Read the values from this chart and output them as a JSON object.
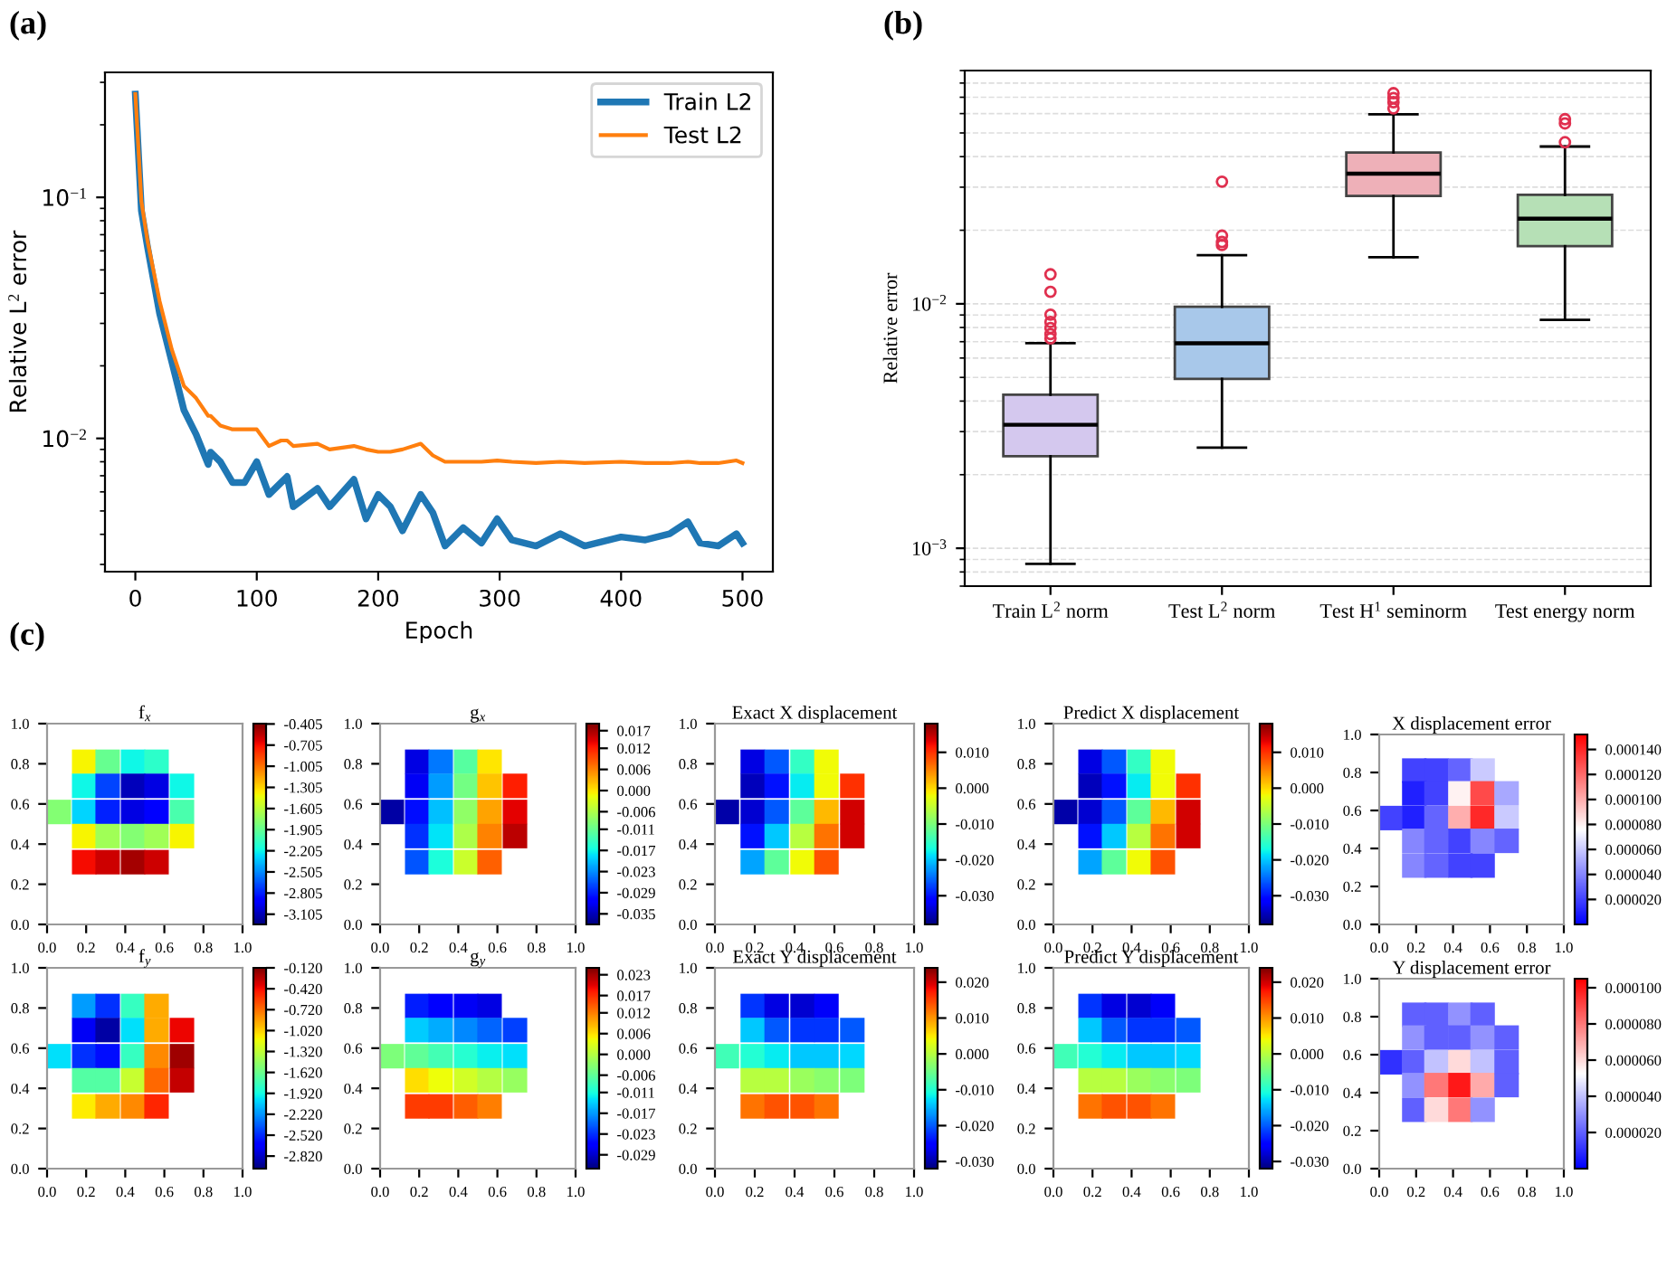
{
  "chart_data": [
    {
      "type": "line",
      "title": "(a)",
      "xlabel": "Epoch",
      "ylabel": "Relative L$^{2}$ error",
      "log": "y",
      "legend": "top right",
      "x": [
        0,
        5,
        10,
        20,
        30,
        40,
        50,
        60,
        62,
        70,
        80,
        90,
        100,
        110,
        120,
        125,
        130,
        150,
        160,
        180,
        190,
        200,
        210,
        220,
        235,
        245,
        255,
        270,
        285,
        298,
        310,
        330,
        350,
        370,
        400,
        420,
        440,
        455,
        465,
        480,
        495,
        500
      ],
      "xlim": [
        -25,
        525
      ],
      "ylim": [
        0.0028,
        0.33
      ],
      "xticks": [
        0,
        100,
        200,
        300,
        400,
        500
      ],
      "yticks": [
        {
          "value": 0.1,
          "label": "10$^{−1}$"
        },
        {
          "value": 0.01,
          "label": "10$^{−2}$"
        }
      ],
      "series": [
        {
          "name": "Train L2",
          "color": "#1f77b4",
          "values": [
            0.268,
            0.0881,
            0.0623,
            0.033,
            0.0208,
            0.0131,
            0.0104,
            0.0078,
            0.00876,
            0.008,
            0.00656,
            0.00656,
            0.008,
            0.00585,
            0.00656,
            0.00695,
            0.00521,
            0.0062,
            0.00521,
            0.00676,
            0.00464,
            0.00585,
            0.00521,
            0.00414,
            0.00585,
            0.00492,
            0.00358,
            0.00426,
            0.00368,
            0.00464,
            0.00379,
            0.00358,
            0.00402,
            0.00358,
            0.0039,
            0.00379,
            0.00402,
            0.00451,
            0.00368,
            0.00358,
            0.00402,
            0.00368
          ]
        },
        {
          "name": "Test L2",
          "color": "#ff7f0e",
          "values": [
            0.268,
            0.0961,
            0.066,
            0.0371,
            0.0234,
            0.0165,
            0.0147,
            0.0124,
            0.0124,
            0.0113,
            0.0109,
            0.0109,
            0.0109,
            0.0093,
            0.0098,
            0.0098,
            0.0093,
            0.0095,
            0.009,
            0.0093,
            0.009,
            0.0088,
            0.0088,
            0.009,
            0.0095,
            0.0085,
            0.008,
            0.008,
            0.008,
            0.0081,
            0.008,
            0.0079,
            0.008,
            0.0079,
            0.008,
            0.0079,
            0.0079,
            0.008,
            0.0079,
            0.0079,
            0.0081,
            0.0079
          ]
        }
      ]
    },
    {
      "type": "box",
      "title": "(b)",
      "ylabel": "Relative error",
      "log": "y",
      "grid": "y",
      "categories": [
        "Train L$^{2}$ norm",
        "Test L$^{2}$ norm",
        "Test H$^{1}$ seminorm",
        "Test energy norm"
      ],
      "colors": [
        "#d4c8ee",
        "#a8c8ea",
        "#eeb0b8",
        "#b6e0b6"
      ],
      "ylim": [
        0.0007,
        0.09
      ],
      "yticks": [
        {
          "value": 0.01,
          "label": "10$^{−2}$"
        },
        {
          "value": 0.001,
          "label": "10$^{−3}$"
        }
      ],
      "boxes": [
        {
          "low": 0.000863,
          "q1": 0.00238,
          "median": 0.0032,
          "q3": 0.00425,
          "high": 0.0069,
          "outliers": [
            0.0132,
            0.0112,
            0.00903,
            0.00843,
            0.00796,
            0.00752,
            0.00722
          ]
        },
        {
          "low": 0.00258,
          "q1": 0.00493,
          "median": 0.0069,
          "q3": 0.00972,
          "high": 0.0158,
          "outliers": [
            0.0316,
            0.019,
            0.0179,
            0.0174
          ]
        },
        {
          "low": 0.0155,
          "q1": 0.0276,
          "median": 0.0341,
          "q3": 0.0416,
          "high": 0.0596,
          "outliers": [
            0.0727,
            0.0695,
            0.0668,
            0.063
          ]
        },
        {
          "low": 0.0086,
          "q1": 0.0172,
          "median": 0.0223,
          "q3": 0.0279,
          "high": 0.044,
          "outliers": [
            0.0569,
            0.0547,
            0.0458
          ]
        }
      ]
    },
    {
      "type": "scatter",
      "title": "f$_{x}$",
      "annotations": [
        "(c)"
      ],
      "marker": "square",
      "xlim": [
        0,
        1
      ],
      "ylim": [
        0,
        1
      ],
      "xticks": [
        {
          "value": 0,
          "label": "0.0"
        },
        {
          "value": 0.2,
          "label": "0.2"
        },
        {
          "value": 0.4,
          "label": "0.4"
        },
        {
          "value": 0.6,
          "label": "0.6"
        },
        {
          "value": 0.8,
          "label": "0.8"
        },
        {
          "value": 1,
          "label": "1.0"
        }
      ],
      "yticks": [
        {
          "value": 0,
          "label": "0.0"
        },
        {
          "value": 0.2,
          "label": "0.2"
        },
        {
          "value": 0.4,
          "label": "0.4"
        },
        {
          "value": 0.6,
          "label": "0.6"
        },
        {
          "value": 0.8,
          "label": "0.8"
        },
        {
          "value": 1,
          "label": "1.0"
        }
      ],
      "x": [
        0.19,
        0.31,
        0.44,
        0.56,
        0.19,
        0.31,
        0.44,
        0.56,
        0.69,
        0.06,
        0.19,
        0.31,
        0.44,
        0.56,
        0.69,
        0.19,
        0.31,
        0.44,
        0.56,
        0.69,
        0.19,
        0.31,
        0.44,
        0.56
      ],
      "values": [
        0.81,
        0.81,
        0.81,
        0.81,
        0.69,
        0.69,
        0.69,
        0.69,
        0.69,
        0.56,
        0.56,
        0.56,
        0.56,
        0.56,
        0.56,
        0.44,
        0.44,
        0.44,
        0.44,
        0.44,
        0.31,
        0.31,
        0.31,
        0.31
      ],
      "cvalues": [
        -1.4,
        -1.9,
        -2.2,
        -2.1,
        -2.2,
        -2.7,
        -3.1,
        -3.0,
        -2.2,
        -1.8,
        -2.3,
        -2.8,
        -3.0,
        -2.9,
        -2.0,
        -1.4,
        -1.7,
        -1.8,
        -1.7,
        -1.4,
        -0.7,
        -0.6,
        -0.5,
        -0.6
      ],
      "clim": [
        -3.25,
        -0.4
      ],
      "cticks": [
        {
          "value": -0.405,
          "label": "-0.405"
        },
        {
          "value": -0.705,
          "label": "-0.705"
        },
        {
          "value": -1.005,
          "label": "-1.005"
        },
        {
          "value": -1.305,
          "label": "-1.305"
        },
        {
          "value": -1.605,
          "label": "-1.605"
        },
        {
          "value": -1.905,
          "label": "-1.905"
        },
        {
          "value": -2.205,
          "label": "-2.205"
        },
        {
          "value": -2.505,
          "label": "-2.505"
        },
        {
          "value": -2.805,
          "label": "-2.805"
        },
        {
          "value": -3.105,
          "label": "-3.105"
        }
      ]
    },
    {
      "type": "scatter",
      "title": "g$_{x}$",
      "marker": "square",
      "xlim": [
        0,
        1
      ],
      "ylim": [
        0,
        1
      ],
      "xticks": [
        {
          "value": 0,
          "label": "0.0"
        },
        {
          "value": 0.2,
          "label": "0.2"
        },
        {
          "value": 0.4,
          "label": "0.4"
        },
        {
          "value": 0.6,
          "label": "0.6"
        },
        {
          "value": 0.8,
          "label": "0.8"
        },
        {
          "value": 1,
          "label": "1.0"
        }
      ],
      "yticks": [
        {
          "value": 0,
          "label": "0.0"
        },
        {
          "value": 0.2,
          "label": "0.2"
        },
        {
          "value": 0.4,
          "label": "0.4"
        },
        {
          "value": 0.6,
          "label": "0.6"
        },
        {
          "value": 0.8,
          "label": "0.8"
        },
        {
          "value": 1,
          "label": "1.0"
        }
      ],
      "x": [
        0.19,
        0.31,
        0.44,
        0.56,
        0.19,
        0.31,
        0.44,
        0.56,
        0.69,
        0.06,
        0.19,
        0.31,
        0.44,
        0.56,
        0.69,
        0.19,
        0.31,
        0.44,
        0.56,
        0.69,
        0.19,
        0.31,
        0.44,
        0.56
      ],
      "values": [
        0.81,
        0.81,
        0.81,
        0.81,
        0.69,
        0.69,
        0.69,
        0.69,
        0.69,
        0.56,
        0.56,
        0.56,
        0.56,
        0.56,
        0.56,
        0.44,
        0.44,
        0.44,
        0.44,
        0.44,
        0.31,
        0.31,
        0.31,
        0.31
      ],
      "cvalues": [
        -0.033,
        -0.024,
        -0.012,
        0.0,
        -0.032,
        -0.022,
        -0.01,
        0.002,
        0.012,
        -0.036,
        -0.03,
        -0.02,
        -0.008,
        0.004,
        0.014,
        -0.028,
        -0.018,
        -0.006,
        0.006,
        0.016,
        -0.026,
        -0.016,
        -0.004,
        0.008
      ],
      "clim": [
        -0.038,
        0.019
      ],
      "cticks": [
        {
          "value": 0.017,
          "label": "0.017"
        },
        {
          "value": 0.012,
          "label": "0.012"
        },
        {
          "value": 0.006,
          "label": "0.006"
        },
        {
          "value": 0.0,
          "label": "0.000"
        },
        {
          "value": -0.006,
          "label": "-0.006"
        },
        {
          "value": -0.011,
          "label": "-0.011"
        },
        {
          "value": -0.017,
          "label": "-0.017"
        },
        {
          "value": -0.023,
          "label": "-0.023"
        },
        {
          "value": -0.029,
          "label": "-0.029"
        },
        {
          "value": -0.035,
          "label": "-0.035"
        }
      ]
    },
    {
      "type": "scatter",
      "title": "Exact X displacement",
      "marker": "square",
      "xlim": [
        0,
        1
      ],
      "ylim": [
        0,
        1
      ],
      "xticks": [
        {
          "value": 0,
          "label": "0.0"
        },
        {
          "value": 0.2,
          "label": "0.2"
        },
        {
          "value": 0.4,
          "label": "0.4"
        },
        {
          "value": 0.6,
          "label": "0.6"
        },
        {
          "value": 0.8,
          "label": "0.8"
        },
        {
          "value": 1,
          "label": "1.0"
        }
      ],
      "yticks": [
        {
          "value": 0,
          "label": "0.0"
        },
        {
          "value": 0.2,
          "label": "0.2"
        },
        {
          "value": 0.4,
          "label": "0.4"
        },
        {
          "value": 0.6,
          "label": "0.6"
        },
        {
          "value": 0.8,
          "label": "0.8"
        },
        {
          "value": 1,
          "label": "1.0"
        }
      ],
      "x": [
        0.19,
        0.31,
        0.44,
        0.56,
        0.19,
        0.31,
        0.44,
        0.56,
        0.69,
        0.06,
        0.19,
        0.31,
        0.44,
        0.56,
        0.69,
        0.19,
        0.31,
        0.44,
        0.56,
        0.69,
        0.19,
        0.31,
        0.44,
        0.56
      ],
      "values": [
        0.81,
        0.81,
        0.81,
        0.81,
        0.69,
        0.69,
        0.69,
        0.69,
        0.69,
        0.56,
        0.56,
        0.56,
        0.56,
        0.56,
        0.56,
        0.44,
        0.44,
        0.44,
        0.44,
        0.44,
        0.31,
        0.31,
        0.31,
        0.31
      ],
      "cvalues": [
        -0.033,
        -0.026,
        -0.015,
        -0.002,
        -0.035,
        -0.03,
        -0.018,
        -0.002,
        0.01,
        -0.036,
        -0.034,
        -0.026,
        -0.012,
        0.002,
        0.014,
        -0.03,
        -0.02,
        -0.006,
        0.006,
        0.014,
        -0.022,
        -0.012,
        -0.002,
        0.008
      ],
      "clim": [
        -0.038,
        0.018
      ],
      "cticks": [
        {
          "value": 0.01,
          "label": "0.010"
        },
        {
          "value": 0.0,
          "label": "0.000"
        },
        {
          "value": -0.01,
          "label": "-0.010"
        },
        {
          "value": -0.02,
          "label": "-0.020"
        },
        {
          "value": -0.03,
          "label": "-0.030"
        }
      ]
    },
    {
      "type": "scatter",
      "title": "Predict X displacement",
      "marker": "square",
      "xlim": [
        0,
        1
      ],
      "ylim": [
        0,
        1
      ],
      "xticks": [
        {
          "value": 0,
          "label": "0.0"
        },
        {
          "value": 0.2,
          "label": "0.2"
        },
        {
          "value": 0.4,
          "label": "0.4"
        },
        {
          "value": 0.6,
          "label": "0.6"
        },
        {
          "value": 0.8,
          "label": "0.8"
        },
        {
          "value": 1,
          "label": "1.0"
        }
      ],
      "yticks": [
        {
          "value": 0,
          "label": "0.0"
        },
        {
          "value": 0.2,
          "label": "0.2"
        },
        {
          "value": 0.4,
          "label": "0.4"
        },
        {
          "value": 0.6,
          "label": "0.6"
        },
        {
          "value": 0.8,
          "label": "0.8"
        },
        {
          "value": 1,
          "label": "1.0"
        }
      ],
      "x": [
        0.19,
        0.31,
        0.44,
        0.56,
        0.19,
        0.31,
        0.44,
        0.56,
        0.69,
        0.06,
        0.19,
        0.31,
        0.44,
        0.56,
        0.69,
        0.19,
        0.31,
        0.44,
        0.56,
        0.69,
        0.19,
        0.31,
        0.44,
        0.56
      ],
      "values": [
        0.81,
        0.81,
        0.81,
        0.81,
        0.69,
        0.69,
        0.69,
        0.69,
        0.69,
        0.56,
        0.56,
        0.56,
        0.56,
        0.56,
        0.56,
        0.44,
        0.44,
        0.44,
        0.44,
        0.44,
        0.31,
        0.31,
        0.31,
        0.31
      ],
      "cvalues": [
        -0.033,
        -0.026,
        -0.015,
        -0.002,
        -0.035,
        -0.03,
        -0.018,
        -0.002,
        0.01,
        -0.036,
        -0.034,
        -0.026,
        -0.012,
        0.002,
        0.014,
        -0.03,
        -0.02,
        -0.006,
        0.006,
        0.014,
        -0.022,
        -0.012,
        -0.002,
        0.008
      ],
      "clim": [
        -0.038,
        0.018
      ],
      "cticks": [
        {
          "value": 0.01,
          "label": "0.010"
        },
        {
          "value": 0.0,
          "label": "0.000"
        },
        {
          "value": -0.01,
          "label": "-0.010"
        },
        {
          "value": -0.02,
          "label": "-0.020"
        },
        {
          "value": -0.03,
          "label": "-0.030"
        }
      ]
    },
    {
      "type": "scatter",
      "title": "X displacement error",
      "marker": "square",
      "xlim": [
        0,
        1
      ],
      "ylim": [
        0,
        1
      ],
      "xticks": [
        {
          "value": 0,
          "label": "0.0"
        },
        {
          "value": 0.2,
          "label": "0.2"
        },
        {
          "value": 0.4,
          "label": "0.4"
        },
        {
          "value": 0.6,
          "label": "0.6"
        },
        {
          "value": 0.8,
          "label": "0.8"
        },
        {
          "value": 1,
          "label": "1.0"
        }
      ],
      "yticks": [
        {
          "value": 0,
          "label": "0.0"
        },
        {
          "value": 0.2,
          "label": "0.2"
        },
        {
          "value": 0.4,
          "label": "0.4"
        },
        {
          "value": 0.6,
          "label": "0.6"
        },
        {
          "value": 0.8,
          "label": "0.8"
        },
        {
          "value": 1,
          "label": "1.0"
        }
      ],
      "x": [
        0.19,
        0.31,
        0.44,
        0.56,
        0.19,
        0.31,
        0.44,
        0.56,
        0.69,
        0.06,
        0.19,
        0.31,
        0.44,
        0.56,
        0.69,
        0.19,
        0.31,
        0.44,
        0.56,
        0.69,
        0.19,
        0.31,
        0.44,
        0.56
      ],
      "values": [
        0.81,
        0.81,
        0.81,
        0.81,
        0.69,
        0.69,
        0.69,
        0.69,
        0.69,
        0.56,
        0.56,
        0.56,
        0.56,
        0.56,
        0.56,
        0.44,
        0.44,
        0.44,
        0.44,
        0.44,
        0.31,
        0.31,
        0.31,
        0.31
      ],
      "cvalues": [
        2e-05,
        2e-05,
        3e-05,
        6e-05,
        1e-05,
        2e-05,
        8e-05,
        0.00013,
        5e-05,
        2e-05,
        1e-05,
        3e-05,
        0.0001,
        0.00014,
        6e-05,
        4e-05,
        3e-05,
        2e-05,
        4e-05,
        3e-05,
        4e-05,
        3e-05,
        2e-05,
        2e-05
      ],
      "clim": [
        0,
        0.000152
      ],
      "cticks": [
        {
          "value": 0.00014,
          "label": "0.000140"
        },
        {
          "value": 0.00012,
          "label": "0.000120"
        },
        {
          "value": 0.0001,
          "label": "0.000100"
        },
        {
          "value": 8e-05,
          "label": "0.000080"
        },
        {
          "value": 6e-05,
          "label": "0.000060"
        },
        {
          "value": 4e-05,
          "label": "0.000040"
        },
        {
          "value": 2e-05,
          "label": "0.000020"
        }
      ]
    },
    {
      "type": "scatter",
      "title": "f$_{y}$",
      "marker": "square",
      "xlim": [
        0,
        1
      ],
      "ylim": [
        0,
        1
      ],
      "xticks": [
        {
          "value": 0,
          "label": "0.0"
        },
        {
          "value": 0.2,
          "label": "0.2"
        },
        {
          "value": 0.4,
          "label": "0.4"
        },
        {
          "value": 0.6,
          "label": "0.6"
        },
        {
          "value": 0.8,
          "label": "0.8"
        },
        {
          "value": 1,
          "label": "1.0"
        }
      ],
      "yticks": [
        {
          "value": 0,
          "label": "0.0"
        },
        {
          "value": 0.2,
          "label": "0.2"
        },
        {
          "value": 0.4,
          "label": "0.4"
        },
        {
          "value": 0.6,
          "label": "0.6"
        },
        {
          "value": 0.8,
          "label": "0.8"
        },
        {
          "value": 1,
          "label": "1.0"
        }
      ],
      "x": [
        0.19,
        0.31,
        0.44,
        0.56,
        0.19,
        0.31,
        0.44,
        0.56,
        0.69,
        0.06,
        0.19,
        0.31,
        0.44,
        0.56,
        0.69,
        0.19,
        0.31,
        0.44,
        0.56,
        0.69,
        0.19,
        0.31,
        0.44,
        0.56
      ],
      "values": [
        0.81,
        0.81,
        0.81,
        0.81,
        0.69,
        0.69,
        0.69,
        0.69,
        0.69,
        0.56,
        0.56,
        0.56,
        0.56,
        0.56,
        0.56,
        0.44,
        0.44,
        0.44,
        0.44,
        0.44,
        0.31,
        0.31,
        0.31,
        0.31
      ],
      "cvalues": [
        -2.2,
        -2.5,
        -1.8,
        -0.9,
        -2.7,
        -2.9,
        -2.0,
        -0.9,
        -0.4,
        -2.0,
        -2.5,
        -2.6,
        -1.8,
        -0.8,
        -0.2,
        -1.7,
        -1.7,
        -1.3,
        -0.7,
        -0.3,
        -1.1,
        -0.9,
        -0.8,
        -0.5
      ],
      "clim": [
        -3.0,
        -0.12
      ],
      "cticks": [
        {
          "value": -0.12,
          "label": "-0.120"
        },
        {
          "value": -0.42,
          "label": "-0.420"
        },
        {
          "value": -0.72,
          "label": "-0.720"
        },
        {
          "value": -1.02,
          "label": "-1.020"
        },
        {
          "value": -1.32,
          "label": "-1.320"
        },
        {
          "value": -1.62,
          "label": "-1.620"
        },
        {
          "value": -1.92,
          "label": "-1.920"
        },
        {
          "value": -2.22,
          "label": "-2.220"
        },
        {
          "value": -2.52,
          "label": "-2.520"
        },
        {
          "value": -2.82,
          "label": "-2.820"
        }
      ]
    },
    {
      "type": "scatter",
      "title": "g$_{y}$",
      "marker": "square",
      "xlim": [
        0,
        1
      ],
      "ylim": [
        0,
        1
      ],
      "xticks": [
        {
          "value": 0,
          "label": "0.0"
        },
        {
          "value": 0.2,
          "label": "0.2"
        },
        {
          "value": 0.4,
          "label": "0.4"
        },
        {
          "value": 0.6,
          "label": "0.6"
        },
        {
          "value": 0.8,
          "label": "0.8"
        },
        {
          "value": 1,
          "label": "1.0"
        }
      ],
      "yticks": [
        {
          "value": 0,
          "label": "0.0"
        },
        {
          "value": 0.2,
          "label": "0.2"
        },
        {
          "value": 0.4,
          "label": "0.4"
        },
        {
          "value": 0.6,
          "label": "0.6"
        },
        {
          "value": 0.8,
          "label": "0.8"
        },
        {
          "value": 1,
          "label": "1.0"
        }
      ],
      "x": [
        0.19,
        0.31,
        0.44,
        0.56,
        0.19,
        0.31,
        0.44,
        0.56,
        0.69,
        0.06,
        0.19,
        0.31,
        0.44,
        0.56,
        0.69,
        0.19,
        0.31,
        0.44,
        0.56,
        0.69,
        0.19,
        0.31,
        0.44,
        0.56
      ],
      "values": [
        0.81,
        0.81,
        0.81,
        0.81,
        0.69,
        0.69,
        0.69,
        0.69,
        0.69,
        0.56,
        0.56,
        0.56,
        0.56,
        0.56,
        0.56,
        0.44,
        0.44,
        0.44,
        0.44,
        0.44,
        0.31,
        0.31,
        0.31,
        0.31
      ],
      "cvalues": [
        -0.024,
        -0.026,
        -0.027,
        -0.028,
        -0.014,
        -0.016,
        -0.018,
        -0.02,
        -0.022,
        -0.004,
        -0.006,
        -0.008,
        -0.01,
        -0.012,
        -0.013,
        0.006,
        0.004,
        0.002,
        0.0,
        -0.002,
        0.016,
        0.016,
        0.014,
        0.012
      ],
      "clim": [
        -0.033,
        0.025
      ],
      "cticks": [
        {
          "value": 0.023,
          "label": "0.023"
        },
        {
          "value": 0.017,
          "label": "0.017"
        },
        {
          "value": 0.012,
          "label": "0.012"
        },
        {
          "value": 0.006,
          "label": "0.006"
        },
        {
          "value": 0.0,
          "label": "0.000"
        },
        {
          "value": -0.006,
          "label": "-0.006"
        },
        {
          "value": -0.011,
          "label": "-0.011"
        },
        {
          "value": -0.017,
          "label": "-0.017"
        },
        {
          "value": -0.023,
          "label": "-0.023"
        },
        {
          "value": -0.029,
          "label": "-0.029"
        }
      ]
    },
    {
      "type": "scatter",
      "title": "Exact Y displacement",
      "marker": "square",
      "xlim": [
        0,
        1
      ],
      "ylim": [
        0,
        1
      ],
      "xticks": [
        {
          "value": 0,
          "label": "0.0"
        },
        {
          "value": 0.2,
          "label": "0.2"
        },
        {
          "value": 0.4,
          "label": "0.4"
        },
        {
          "value": 0.6,
          "label": "0.6"
        },
        {
          "value": 0.8,
          "label": "0.8"
        },
        {
          "value": 1,
          "label": "1.0"
        }
      ],
      "yticks": [
        {
          "value": 0,
          "label": "0.0"
        },
        {
          "value": 0.2,
          "label": "0.2"
        },
        {
          "value": 0.4,
          "label": "0.4"
        },
        {
          "value": 0.6,
          "label": "0.6"
        },
        {
          "value": 0.8,
          "label": "0.8"
        },
        {
          "value": 1,
          "label": "1.0"
        }
      ],
      "x": [
        0.19,
        0.31,
        0.44,
        0.56,
        0.19,
        0.31,
        0.44,
        0.56,
        0.69,
        0.06,
        0.19,
        0.31,
        0.44,
        0.56,
        0.69,
        0.19,
        0.31,
        0.44,
        0.56,
        0.69,
        0.19,
        0.31,
        0.44,
        0.56
      ],
      "values": [
        0.81,
        0.81,
        0.81,
        0.81,
        0.69,
        0.69,
        0.69,
        0.69,
        0.69,
        0.56,
        0.56,
        0.56,
        0.56,
        0.56,
        0.56,
        0.44,
        0.44,
        0.44,
        0.44,
        0.44,
        0.31,
        0.31,
        0.31,
        0.31
      ],
      "cvalues": [
        -0.022,
        -0.027,
        -0.028,
        -0.026,
        -0.014,
        -0.02,
        -0.022,
        -0.022,
        -0.02,
        -0.008,
        -0.01,
        -0.012,
        -0.014,
        -0.014,
        -0.013,
        0.0,
        0.0,
        -0.002,
        -0.003,
        -0.004,
        0.012,
        0.014,
        0.014,
        0.012
      ],
      "clim": [
        -0.032,
        0.024
      ],
      "cticks": [
        {
          "value": 0.02,
          "label": "0.020"
        },
        {
          "value": 0.01,
          "label": "0.010"
        },
        {
          "value": 0.0,
          "label": "0.000"
        },
        {
          "value": -0.01,
          "label": "-0.010"
        },
        {
          "value": -0.02,
          "label": "-0.020"
        },
        {
          "value": -0.03,
          "label": "-0.030"
        }
      ]
    },
    {
      "type": "scatter",
      "title": "Predict Y displacement",
      "marker": "square",
      "xlim": [
        0,
        1
      ],
      "ylim": [
        0,
        1
      ],
      "xticks": [
        {
          "value": 0,
          "label": "0.0"
        },
        {
          "value": 0.2,
          "label": "0.2"
        },
        {
          "value": 0.4,
          "label": "0.4"
        },
        {
          "value": 0.6,
          "label": "0.6"
        },
        {
          "value": 0.8,
          "label": "0.8"
        },
        {
          "value": 1,
          "label": "1.0"
        }
      ],
      "yticks": [
        {
          "value": 0,
          "label": "0.0"
        },
        {
          "value": 0.2,
          "label": "0.2"
        },
        {
          "value": 0.4,
          "label": "0.4"
        },
        {
          "value": 0.6,
          "label": "0.6"
        },
        {
          "value": 0.8,
          "label": "0.8"
        },
        {
          "value": 1,
          "label": "1.0"
        }
      ],
      "x": [
        0.19,
        0.31,
        0.44,
        0.56,
        0.19,
        0.31,
        0.44,
        0.56,
        0.69,
        0.06,
        0.19,
        0.31,
        0.44,
        0.56,
        0.69,
        0.19,
        0.31,
        0.44,
        0.56,
        0.69,
        0.19,
        0.31,
        0.44,
        0.56
      ],
      "values": [
        0.81,
        0.81,
        0.81,
        0.81,
        0.69,
        0.69,
        0.69,
        0.69,
        0.69,
        0.56,
        0.56,
        0.56,
        0.56,
        0.56,
        0.56,
        0.44,
        0.44,
        0.44,
        0.44,
        0.44,
        0.31,
        0.31,
        0.31,
        0.31
      ],
      "cvalues": [
        -0.022,
        -0.027,
        -0.028,
        -0.026,
        -0.014,
        -0.02,
        -0.022,
        -0.022,
        -0.02,
        -0.008,
        -0.01,
        -0.012,
        -0.014,
        -0.014,
        -0.013,
        0.0,
        0.0,
        -0.002,
        -0.003,
        -0.004,
        0.012,
        0.014,
        0.014,
        0.012
      ],
      "clim": [
        -0.032,
        0.024
      ],
      "cticks": [
        {
          "value": 0.02,
          "label": "0.020"
        },
        {
          "value": 0.01,
          "label": "0.010"
        },
        {
          "value": 0.0,
          "label": "0.000"
        },
        {
          "value": -0.01,
          "label": "-0.010"
        },
        {
          "value": -0.02,
          "label": "-0.020"
        },
        {
          "value": -0.03,
          "label": "-0.030"
        }
      ]
    },
    {
      "type": "scatter",
      "title": "Y displacement error",
      "marker": "square",
      "xlim": [
        0,
        1
      ],
      "ylim": [
        0,
        1
      ],
      "xticks": [
        {
          "value": 0,
          "label": "0.0"
        },
        {
          "value": 0.2,
          "label": "0.2"
        },
        {
          "value": 0.4,
          "label": "0.4"
        },
        {
          "value": 0.6,
          "label": "0.6"
        },
        {
          "value": 0.8,
          "label": "0.8"
        },
        {
          "value": 1,
          "label": "1.0"
        }
      ],
      "yticks": [
        {
          "value": 0,
          "label": "0.0"
        },
        {
          "value": 0.2,
          "label": "0.2"
        },
        {
          "value": 0.4,
          "label": "0.4"
        },
        {
          "value": 0.6,
          "label": "0.6"
        },
        {
          "value": 0.8,
          "label": "0.8"
        },
        {
          "value": 1,
          "label": "1.0"
        }
      ],
      "x": [
        0.19,
        0.31,
        0.44,
        0.56,
        0.19,
        0.31,
        0.44,
        0.56,
        0.69,
        0.06,
        0.19,
        0.31,
        0.44,
        0.56,
        0.69,
        0.19,
        0.31,
        0.44,
        0.56,
        0.69,
        0.19,
        0.31,
        0.44,
        0.56
      ],
      "values": [
        0.81,
        0.81,
        0.81,
        0.81,
        0.69,
        0.69,
        0.69,
        0.69,
        0.69,
        0.56,
        0.56,
        0.56,
        0.56,
        0.56,
        0.56,
        0.44,
        0.44,
        0.44,
        0.44,
        0.44,
        0.31,
        0.31,
        0.31,
        0.31
      ],
      "cvalues": [
        2e-05,
        2e-05,
        3e-05,
        2e-05,
        3e-05,
        2e-05,
        2e-05,
        3e-05,
        2e-05,
        1e-05,
        2e-05,
        4e-05,
        6e-05,
        4e-05,
        2e-05,
        3e-05,
        8e-05,
        0.0001,
        7e-05,
        2e-05,
        2e-05,
        6e-05,
        8e-05,
        3e-05
      ],
      "clim": [
        0,
        0.000105
      ],
      "cticks": [
        {
          "value": 0.0001,
          "label": "0.000100"
        },
        {
          "value": 8e-05,
          "label": "0.000080"
        },
        {
          "value": 6e-05,
          "label": "0.000060"
        },
        {
          "value": 4e-05,
          "label": "0.000040"
        },
        {
          "value": 2e-05,
          "label": "0.000020"
        }
      ]
    }
  ]
}
